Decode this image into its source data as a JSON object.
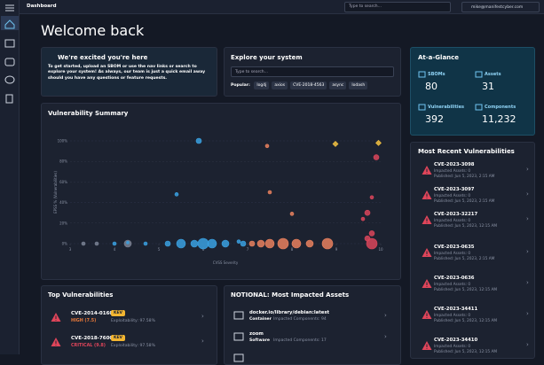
{
  "topbar": {
    "title": "Dashboard",
    "search_placeholder": "Type to search...",
    "user": "mike@manifestcyber.com"
  },
  "welcome": "Welcome back",
  "intro": {
    "title": "We're excited you're here",
    "body": "To get started, upload an SBOM or use the nav links or search to explore your system! As always, our team is just a quick email away should you have any questions or feature requests."
  },
  "explore": {
    "title": "Explore your system",
    "search_placeholder": "Type to search...",
    "popular_label": "Popular:",
    "chips": [
      "log4j",
      "axios",
      "CVE-2018-4563",
      "async",
      "lodash"
    ]
  },
  "glance": {
    "title": "At-a-Glance",
    "items": [
      {
        "label": "SBOMs",
        "value": "80"
      },
      {
        "label": "Assets",
        "value": "31"
      },
      {
        "label": "Vulnerabilities",
        "value": "392"
      },
      {
        "label": "Components",
        "value": "11,232"
      }
    ]
  },
  "vulnerability_summary": {
    "type": "scatter",
    "title": "Vulnerability Summary",
    "x_label": "CVSS Severity",
    "y_label": "EPSS % (Vulnerabilities)",
    "xlim": [
      3,
      10
    ],
    "xticks": [
      3,
      4,
      5,
      6,
      7,
      8,
      9,
      10
    ],
    "ylim": [
      0,
      100
    ],
    "yticks": [
      {
        "value": 0,
        "label": "0%"
      },
      {
        "value": 20,
        "label": "20%"
      },
      {
        "value": 40,
        "label": "40%"
      },
      {
        "value": 60,
        "label": "60%"
      },
      {
        "value": 80,
        "label": "80%"
      },
      {
        "value": 100,
        "label": "100%"
      }
    ],
    "series": [
      {
        "color": "#7a8294",
        "marker": "circle",
        "x": [
          3.3,
          3.6,
          4.3
        ],
        "y": [
          0,
          0,
          0
        ],
        "size": [
          2,
          2,
          4
        ]
      },
      {
        "color": "#3aa0e0",
        "marker": "circle",
        "x": [
          4.0,
          4.3,
          4.7,
          5.2,
          5.4,
          5.5,
          5.8,
          5.9,
          6.0,
          6.2,
          6.5,
          6.8,
          6.9
        ],
        "y": [
          0,
          1,
          0,
          0,
          48,
          0,
          0,
          100,
          0,
          0,
          0,
          2,
          0
        ],
        "size": [
          2,
          1.5,
          2,
          3,
          2,
          5,
          4,
          3,
          6,
          5,
          4,
          2,
          3
        ]
      },
      {
        "color": "#e8805e",
        "marker": "circle",
        "x": [
          7.1,
          7.3,
          7.44,
          7.5,
          7.5,
          7.8,
          8.0,
          8.1,
          8.4,
          8.8
        ],
        "y": [
          0,
          0,
          95,
          50,
          0,
          0,
          29,
          0,
          0,
          0
        ],
        "size": [
          3,
          4,
          2,
          2,
          5,
          6,
          2,
          5,
          4,
          6
        ]
      },
      {
        "color": "#d9455a",
        "marker": "circle",
        "x": [
          9.6,
          9.7,
          9.7,
          9.8,
          9.8,
          9.8,
          9.9
        ],
        "y": [
          24,
          30,
          5,
          45,
          10,
          0,
          84
        ],
        "size": [
          2,
          3,
          3,
          2,
          3,
          6,
          3
        ]
      },
      {
        "color": "#f5c342",
        "marker": "diamond",
        "x": [
          8.98,
          9.95
        ],
        "y": [
          97,
          98
        ],
        "size": [
          3,
          3
        ]
      }
    ]
  },
  "recent": {
    "title": "Most Recent Vulnerabilities",
    "items": [
      {
        "id": "CVE-2023-3098",
        "assets": "Impacted Assets: 0",
        "published": "Published: Jun 5, 2023, 2:15 AM"
      },
      {
        "id": "CVE-2023-3097",
        "assets": "Impacted Assets: 0",
        "published": "Published: Jun 5, 2023, 2:15 AM"
      },
      {
        "id": "CVE-2023-32217",
        "assets": "Impacted Assets: 0",
        "published": "Published: Jun 5, 2023, 12:15 AM"
      },
      {
        "id": "CVE-2023-0635",
        "assets": "Impacted Assets: 0",
        "published": "Published: Jun 5, 2023, 2:15 AM"
      },
      {
        "id": "CVE-2023-0636",
        "assets": "Impacted Assets: 0",
        "published": "Published: Jun 5, 2023, 12:15 AM"
      },
      {
        "id": "CVE-2023-34411",
        "assets": "Impacted Assets: 0",
        "published": "Published: Jun 5, 2023, 12:15 AM"
      },
      {
        "id": "CVE-2023-34410",
        "assets": "Impacted Assets: 0",
        "published": "Published: Jun 5, 2023, 12:15 AM"
      }
    ]
  },
  "top": {
    "title": "Top Vulnerabilities",
    "items": [
      {
        "id": "CVE-2014-0160",
        "badge": "KEV",
        "severity": "HIGH (7.5)",
        "exploitability": "Exploitability: 97.58%"
      },
      {
        "id": "CVE-2018-7600",
        "badge": "KEV",
        "severity": "CRITICAL (9.8)",
        "exploitability": "Exploitability: 97.58%"
      }
    ]
  },
  "assets": {
    "title": "NOTIONAL: Most Impacted Assets",
    "items": [
      {
        "name": "docker.io/library/debian:latest",
        "kind": "Container",
        "components": "Impacted Components: 94"
      },
      {
        "name": "zoom",
        "kind": "Software",
        "components": "Impacted Components: 17"
      }
    ]
  }
}
